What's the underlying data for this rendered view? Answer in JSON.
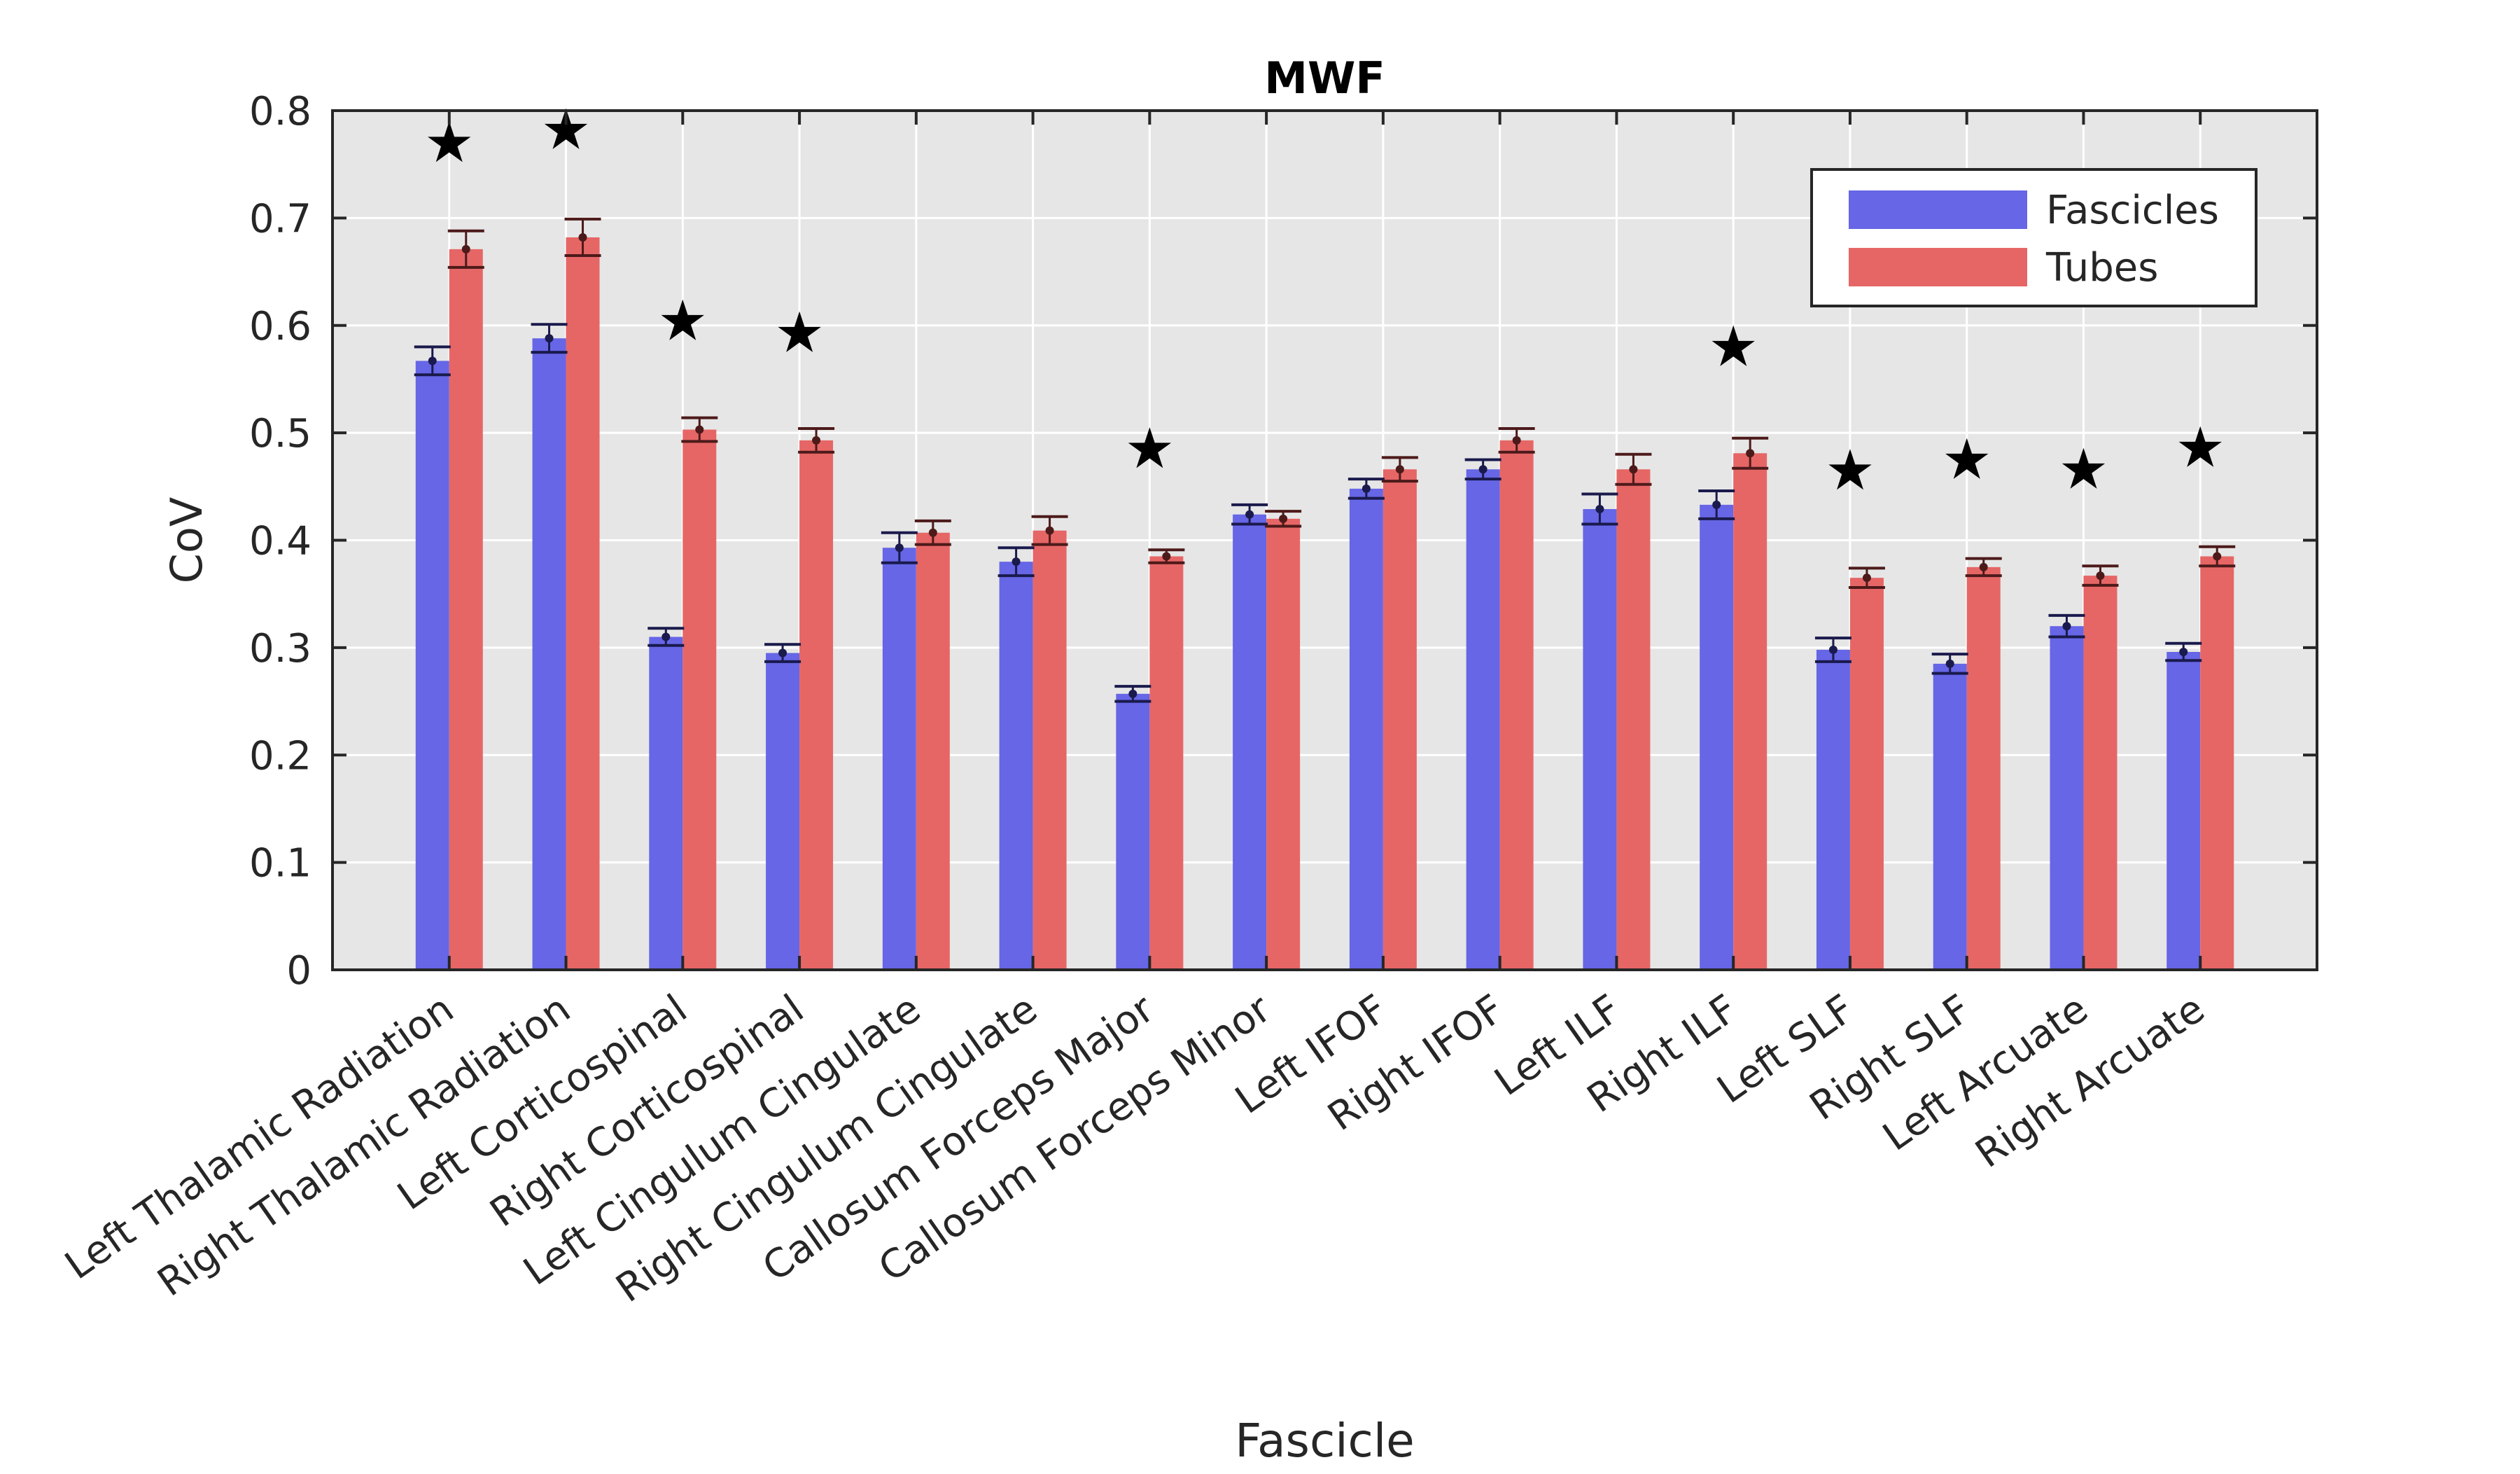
{
  "chart_data": {
    "type": "bar",
    "title": "MWF",
    "xlabel": "Fascicle",
    "ylabel": "CoV",
    "ylim": [
      0,
      0.8
    ],
    "yticks": [
      0,
      0.1,
      0.2,
      0.3,
      0.4,
      0.5,
      0.6,
      0.7,
      0.8
    ],
    "ytick_labels": [
      "0",
      "0.1",
      "0.2",
      "0.3",
      "0.4",
      "0.5",
      "0.6",
      "0.7",
      "0.8"
    ],
    "grid": true,
    "legend_position": "top-right",
    "categories": [
      "Left Thalamic Radiation",
      "Right Thalamic Radiation",
      "Left Corticospinal",
      "Right Corticospinal",
      "Left Cingulum Cingulate",
      "Right Cingulum Cingulate",
      "Callosum Forceps Major",
      "Callosum Forceps Minor",
      "Left IFOF",
      "Right IFOF",
      "Left ILF",
      "Right ILF",
      "Left SLF",
      "Right SLF",
      "Left Arcuate",
      "Right Arcuate"
    ],
    "series": [
      {
        "name": "Fascicles",
        "color": "#6666e6",
        "error_color": "#1a1a4d",
        "values": [
          0.567,
          0.588,
          0.31,
          0.295,
          0.393,
          0.38,
          0.257,
          0.424,
          0.448,
          0.466,
          0.429,
          0.433,
          0.298,
          0.285,
          0.32,
          0.296
        ],
        "errors": [
          0.013,
          0.013,
          0.008,
          0.008,
          0.014,
          0.013,
          0.007,
          0.009,
          0.009,
          0.009,
          0.014,
          0.013,
          0.011,
          0.009,
          0.01,
          0.008
        ]
      },
      {
        "name": "Tubes",
        "color": "#e66666",
        "error_color": "#4d1a1a",
        "values": [
          0.671,
          0.682,
          0.503,
          0.493,
          0.407,
          0.409,
          0.385,
          0.42,
          0.466,
          0.493,
          0.466,
          0.481,
          0.365,
          0.375,
          0.367,
          0.385
        ],
        "errors": [
          0.017,
          0.017,
          0.011,
          0.011,
          0.011,
          0.013,
          0.006,
          0.007,
          0.011,
          0.011,
          0.014,
          0.014,
          0.009,
          0.008,
          0.009,
          0.009
        ]
      }
    ],
    "significance": {
      "marker": "★",
      "heights": [
        0.77,
        0.782,
        0.604,
        0.593,
        null,
        null,
        0.485,
        null,
        null,
        null,
        null,
        0.58,
        0.465,
        0.475,
        0.466,
        0.486
      ]
    }
  }
}
